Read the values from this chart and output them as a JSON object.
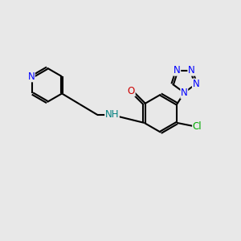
{
  "bg_color": "#e8e8e8",
  "bond_color": "#000000",
  "bond_width": 1.5,
  "atom_colors": {
    "N": "#0000ff",
    "O": "#cc0000",
    "Cl": "#00aa00",
    "NH": "#008080",
    "C": "#000000"
  },
  "font_size": 8.5
}
